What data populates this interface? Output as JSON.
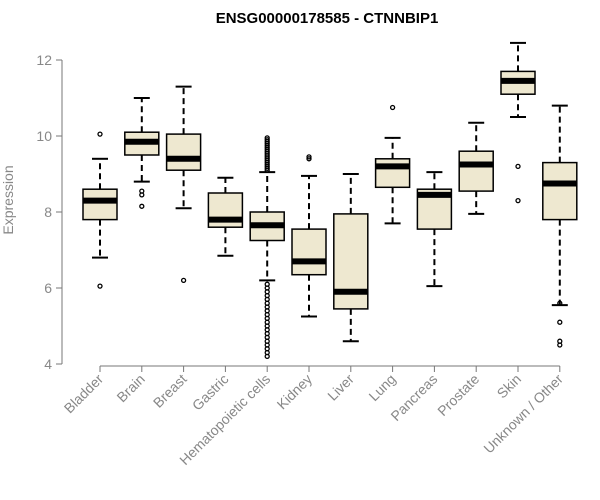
{
  "chart_data": {
    "type": "boxplot",
    "title": "ENSG00000178585 - CTNNBIP1",
    "xlabel": "",
    "ylabel": "Expression",
    "ylim": [
      4,
      12.5
    ],
    "yticks": [
      4,
      6,
      8,
      10,
      12
    ],
    "box_fill": "#EEE8D0",
    "median_color": "#000000",
    "categories": [
      "Bladder",
      "Brain",
      "Breast",
      "Gastric",
      "Hematopoietic cells",
      "Kidney",
      "Liver",
      "Lung",
      "Pancreas",
      "Prostate",
      "Skin",
      "Unknown / Other"
    ],
    "boxes": [
      {
        "category": "Bladder",
        "whisker_low": 6.8,
        "q1": 7.8,
        "median": 8.3,
        "q3": 8.6,
        "whisker_high": 9.4,
        "outliers": [
          10.05,
          6.05
        ]
      },
      {
        "category": "Brain",
        "whisker_low": 8.8,
        "q1": 9.5,
        "median": 9.85,
        "q3": 10.1,
        "whisker_high": 11.0,
        "outliers": [
          8.55,
          8.45,
          8.15
        ]
      },
      {
        "category": "Breast",
        "whisker_low": 8.1,
        "q1": 9.1,
        "median": 9.4,
        "q3": 10.05,
        "whisker_high": 11.3,
        "outliers": [
          6.2
        ]
      },
      {
        "category": "Gastric",
        "whisker_low": 6.85,
        "q1": 7.6,
        "median": 7.8,
        "q3": 8.5,
        "whisker_high": 8.9,
        "outliers": []
      },
      {
        "category": "Hematopoietic cells",
        "whisker_low": 6.2,
        "q1": 7.25,
        "median": 7.65,
        "q3": 8.0,
        "whisker_high": 9.05,
        "outliers": [
          9.95,
          9.9,
          9.85,
          9.8,
          9.75,
          9.7,
          9.65,
          9.6,
          9.55,
          9.5,
          9.45,
          9.4,
          9.35,
          9.3,
          9.25,
          9.2,
          9.15,
          9.1,
          6.1,
          6.0,
          5.9,
          5.8,
          5.7,
          5.6,
          5.5,
          5.4,
          5.3,
          5.2,
          5.1,
          5.0,
          4.9,
          4.8,
          4.7,
          4.6,
          4.5,
          4.4,
          4.3,
          4.2
        ]
      },
      {
        "category": "Kidney",
        "whisker_low": 5.25,
        "q1": 6.35,
        "median": 6.7,
        "q3": 7.55,
        "whisker_high": 8.95,
        "outliers": [
          9.45,
          9.4
        ]
      },
      {
        "category": "Liver",
        "whisker_low": 4.6,
        "q1": 5.45,
        "median": 5.9,
        "q3": 7.95,
        "whisker_high": 9.0,
        "outliers": []
      },
      {
        "category": "Lung",
        "whisker_low": 7.7,
        "q1": 8.65,
        "median": 9.2,
        "q3": 9.4,
        "whisker_high": 9.95,
        "outliers": [
          10.75
        ]
      },
      {
        "category": "Pancreas",
        "whisker_low": 6.05,
        "q1": 7.55,
        "median": 8.45,
        "q3": 8.6,
        "whisker_high": 9.05,
        "outliers": []
      },
      {
        "category": "Prostate",
        "whisker_low": 7.95,
        "q1": 8.55,
        "median": 9.25,
        "q3": 9.6,
        "whisker_high": 10.35,
        "outliers": []
      },
      {
        "category": "Skin",
        "whisker_low": 10.5,
        "q1": 11.1,
        "median": 11.45,
        "q3": 11.7,
        "whisker_high": 12.45,
        "outliers": [
          9.2,
          8.3
        ]
      },
      {
        "category": "Unknown / Other",
        "whisker_low": 5.55,
        "q1": 7.8,
        "median": 8.75,
        "q3": 9.3,
        "whisker_high": 10.8,
        "outliers": [
          5.6,
          5.1,
          4.6,
          4.5
        ]
      }
    ]
  }
}
